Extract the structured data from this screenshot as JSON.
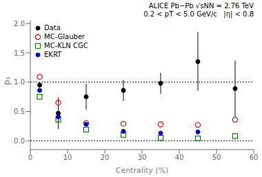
{
  "chart_data": {
    "type": "scatter",
    "xlabel": "Centrality (%)",
    "ylabel": "p₁",
    "annotations": [
      "ALICE Pb−Pb √sNN = 2.76 TeV",
      "0.2 < pT < 5.0 GeV/c   |η| < 0.8"
    ],
    "xlim": [
      0,
      60
    ],
    "ylim": [
      -0.15,
      2.05
    ],
    "xticks": [
      0,
      10,
      20,
      30,
      40,
      50,
      60
    ],
    "yticks": [
      {
        "value": 0,
        "label": "0.0"
      },
      {
        "value": 0.5,
        "label": "0.5"
      },
      {
        "value": 1,
        "label": "1.0"
      },
      {
        "value": 1.5,
        "label": "1.5"
      },
      {
        "value": 2,
        "label": "2.0"
      }
    ],
    "hlines": [
      0,
      1
    ],
    "grid": false,
    "legend": "upper left",
    "series": [
      {
        "name": "Data",
        "color": "#000000",
        "marker": "circle",
        "x": [
          2.5,
          7.5,
          15,
          25,
          35,
          45,
          55
        ],
        "values": [
          0.95,
          0.47,
          0.75,
          0.86,
          0.98,
          1.35,
          0.89
        ],
        "yerr": [
          0.05,
          0.27,
          0.22,
          0.18,
          0.18,
          0.5,
          0.48
        ]
      },
      {
        "name": "MC-Glauber",
        "color": "#cc0000",
        "marker": "open_circle",
        "x": [
          2.5,
          7.5,
          15,
          25,
          35,
          45,
          55
        ],
        "values": [
          1.09,
          0.65,
          0.3,
          0.29,
          0.28,
          0.27,
          0.36
        ]
      },
      {
        "name": "MC-KLN CGC",
        "color": "#007700",
        "marker": "open_square",
        "x": [
          2.5,
          7.5,
          15,
          25,
          35,
          45,
          55
        ],
        "values": [
          0.75,
          0.36,
          0.19,
          0.1,
          0.05,
          0.04,
          0.08
        ]
      },
      {
        "name": "EKRT",
        "color": "#0000cc",
        "marker": "circle",
        "x": [
          2.5,
          7.5,
          15,
          25,
          35,
          45
        ],
        "values": [
          0.86,
          0.41,
          0.28,
          0.16,
          0.13,
          0.15
        ]
      }
    ]
  }
}
